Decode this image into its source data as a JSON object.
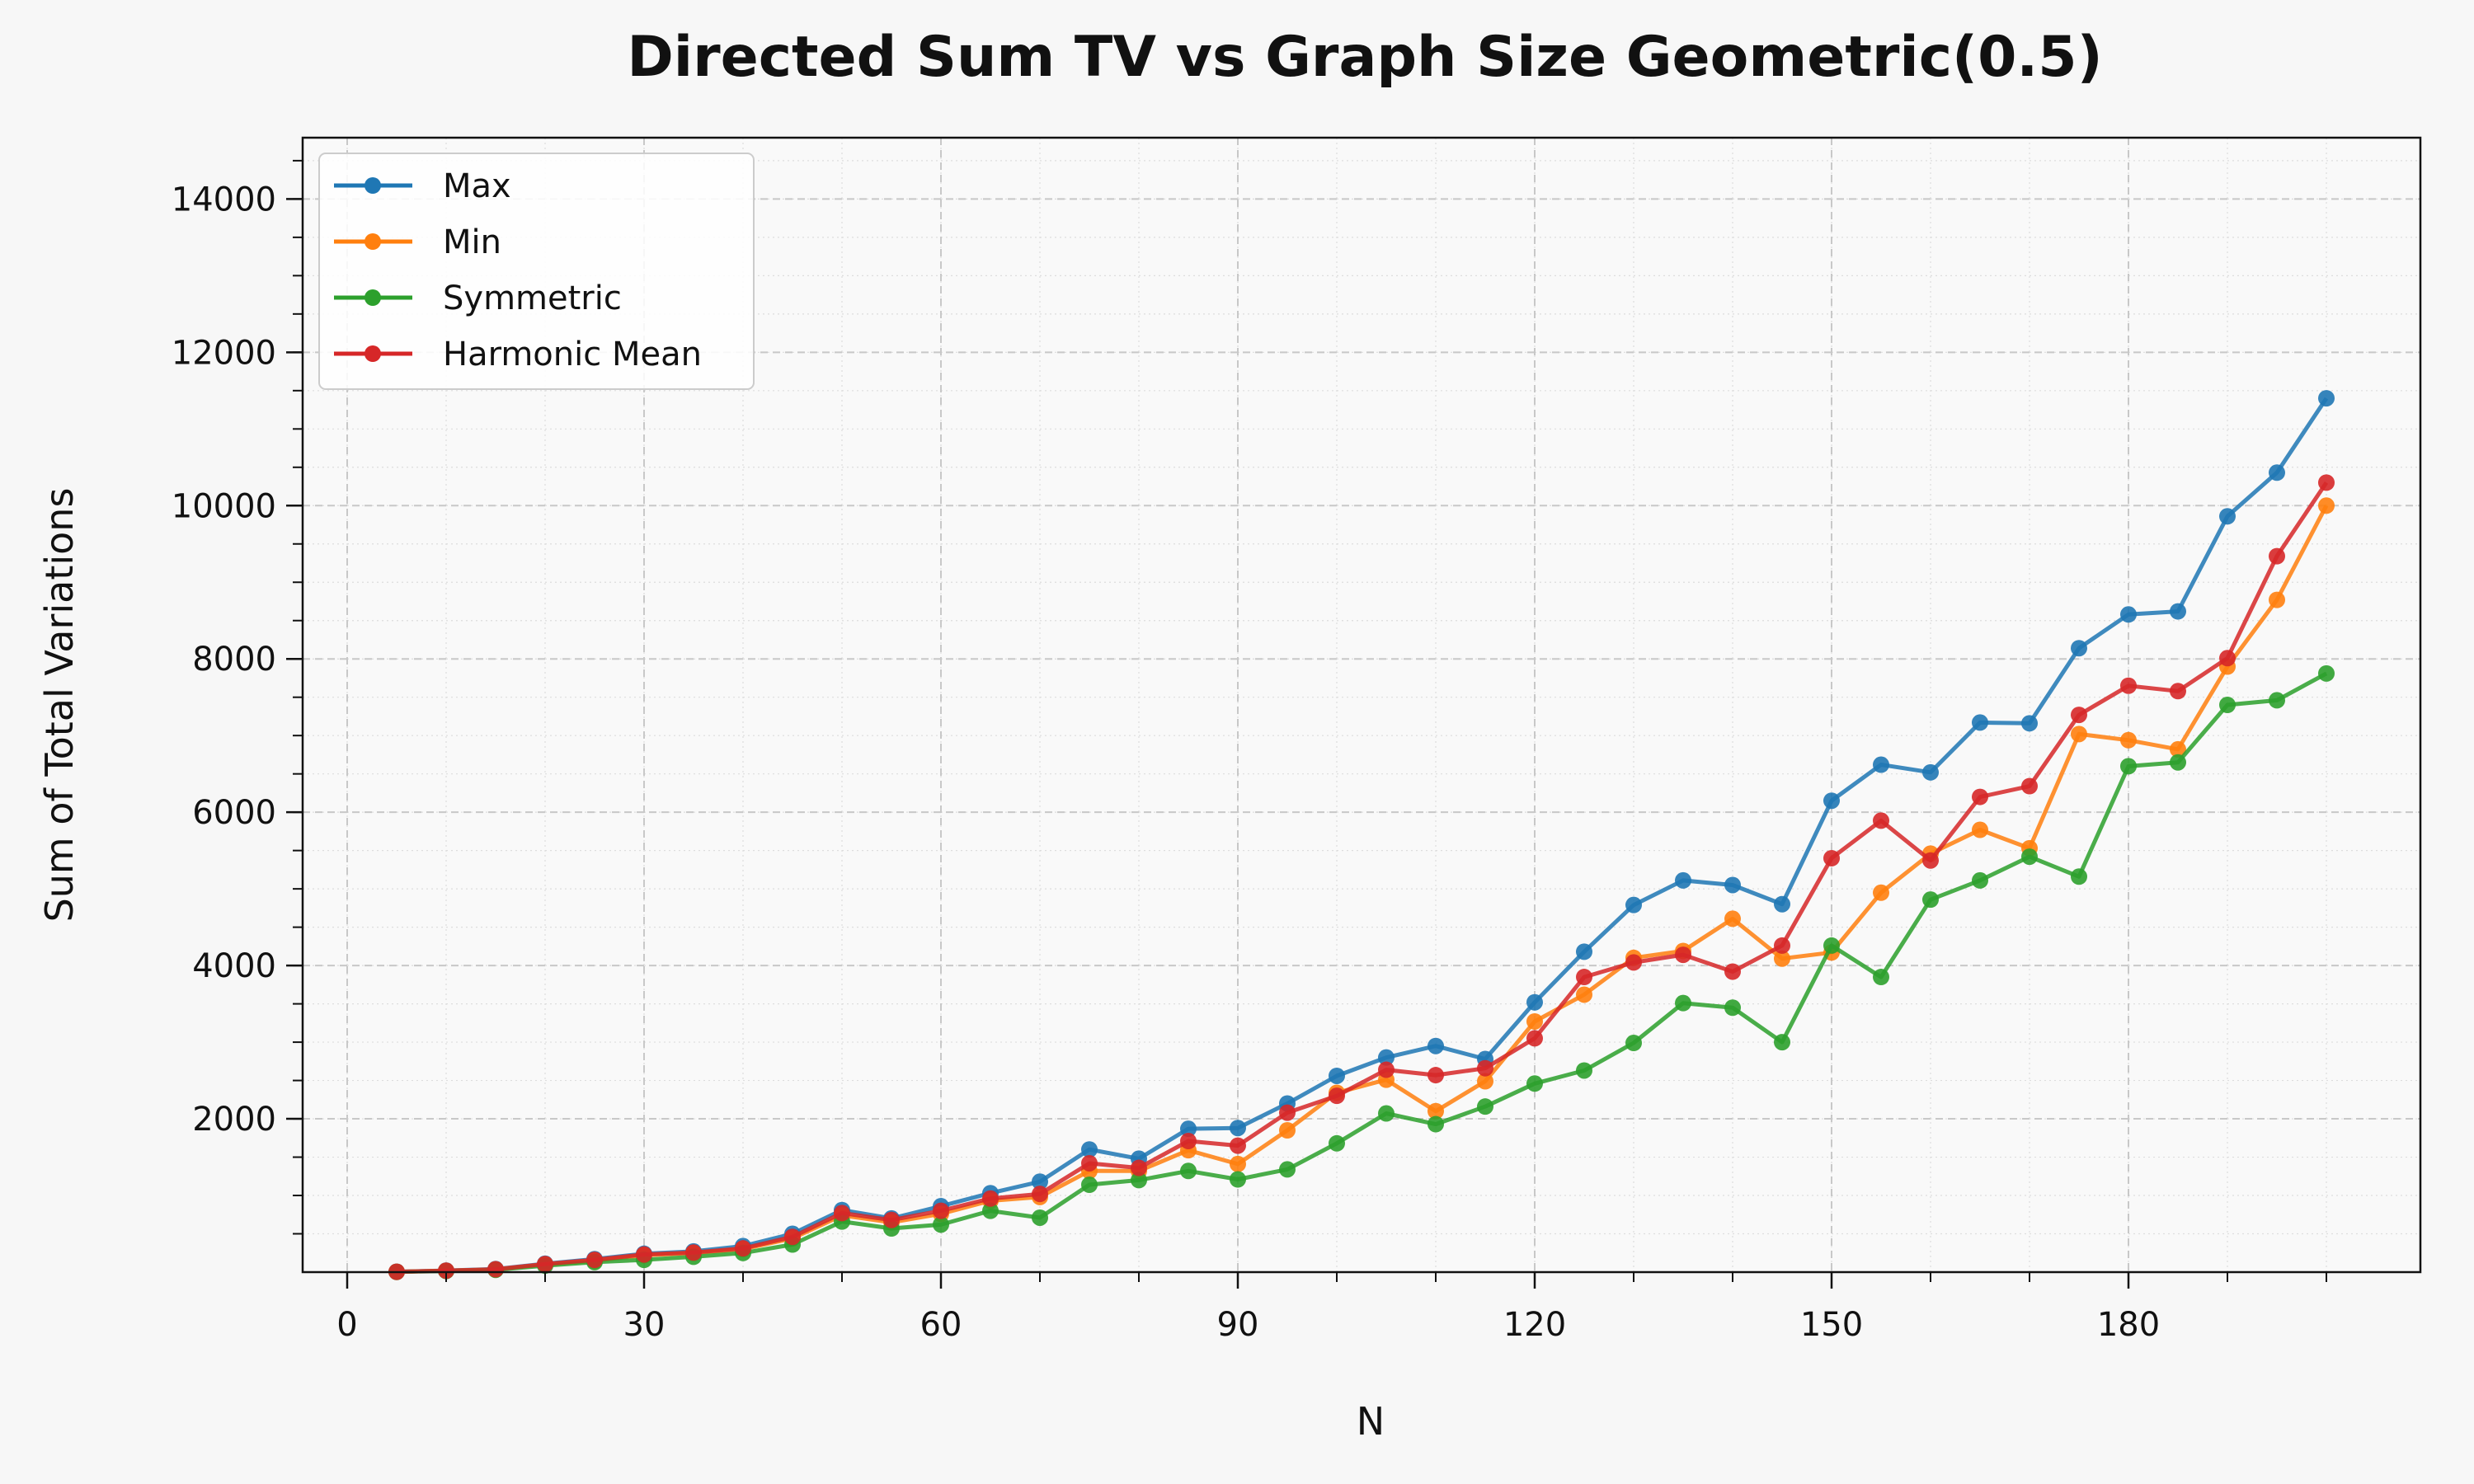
{
  "chart_data": {
    "type": "line",
    "title": "Directed Sum TV vs Graph Size Geometric(0.5)",
    "xlabel": "N",
    "ylabel": "Sum of Total Variations",
    "xlim": [
      -4.5,
      209.5
    ],
    "ylim": [
      0,
      14800
    ],
    "xticks": [
      0,
      30,
      60,
      90,
      120,
      150,
      180
    ],
    "yticks": [
      2000,
      4000,
      6000,
      8000,
      10000,
      12000,
      14000
    ],
    "grid": true,
    "legend_position": "top-left",
    "x": [
      5,
      10,
      15,
      20,
      25,
      30,
      35,
      40,
      45,
      50,
      55,
      60,
      65,
      70,
      75,
      80,
      85,
      90,
      95,
      100,
      105,
      110,
      115,
      120,
      125,
      130,
      135,
      140,
      145,
      150,
      155,
      160,
      165,
      170,
      175,
      180,
      185,
      190,
      195,
      200
    ],
    "series": [
      {
        "name": "Max",
        "color": "#1f77b4",
        "values": [
          5,
          20,
          40,
          110,
          170,
          240,
          270,
          340,
          500,
          810,
          700,
          860,
          1030,
          1180,
          1600,
          1480,
          1870,
          1880,
          2200,
          2560,
          2800,
          2950,
          2780,
          3520,
          4180,
          4790,
          5110,
          5050,
          4800,
          6150,
          6620,
          6520,
          7170,
          7160,
          8140,
          8580,
          8620,
          9860,
          10430,
          11400
        ]
      },
      {
        "name": "Min",
        "color": "#ff7f0e",
        "values": [
          4,
          18,
          35,
          100,
          150,
          220,
          250,
          300,
          440,
          740,
          650,
          760,
          930,
          980,
          1320,
          1320,
          1590,
          1410,
          1850,
          2340,
          2510,
          2100,
          2490,
          3270,
          3620,
          4100,
          4190,
          4610,
          4090,
          4170,
          4950,
          5460,
          5770,
          5530,
          7020,
          6940,
          6820,
          7900,
          8770,
          10000
        ]
      },
      {
        "name": "Symmetric",
        "color": "#2ca02c",
        "values": [
          3,
          15,
          30,
          85,
          130,
          160,
          200,
          250,
          360,
          660,
          570,
          620,
          800,
          710,
          1140,
          1200,
          1320,
          1210,
          1340,
          1680,
          2070,
          1930,
          2160,
          2460,
          2630,
          2990,
          3510,
          3450,
          3000,
          4260,
          3850,
          4860,
          5110,
          5420,
          5160,
          6600,
          6650,
          7400,
          7460,
          7810
        ]
      },
      {
        "name": "Harmonic Mean",
        "color": "#d62728",
        "values": [
          4,
          19,
          37,
          105,
          160,
          230,
          255,
          310,
          460,
          770,
          680,
          800,
          960,
          1020,
          1420,
          1360,
          1710,
          1650,
          2080,
          2300,
          2640,
          2570,
          2660,
          3050,
          3850,
          4040,
          4140,
          3920,
          4260,
          5400,
          5890,
          5370,
          6200,
          6340,
          7270,
          7650,
          7580,
          8010,
          9340,
          10300
        ]
      }
    ]
  }
}
